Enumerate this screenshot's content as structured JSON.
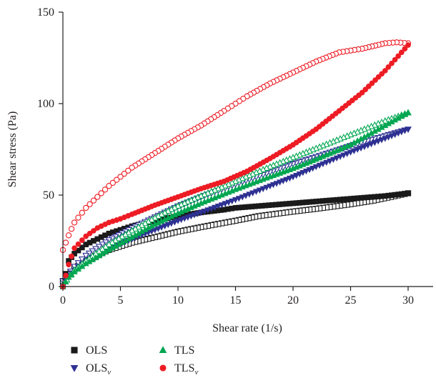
{
  "chart_data": {
    "type": "scatter",
    "title": "",
    "xlabel": "Shear rate (1/s)",
    "ylabel": "Shear stress (Pa)",
    "xlim": [
      0,
      32
    ],
    "ylim": [
      0,
      150
    ],
    "x_ticks": [
      "0",
      "5",
      "10",
      "15",
      "20",
      "25",
      "30"
    ],
    "y_ticks": [
      "0",
      "50",
      "100",
      "150"
    ],
    "grid": false,
    "legend_position": "bottom-left",
    "series": [
      {
        "key": "OLS",
        "name": "OLS",
        "subscript": "",
        "marker": "square",
        "color": "#1a1a1a",
        "up_x": [
          0,
          0.5,
          1,
          2,
          3,
          4,
          5,
          6,
          8,
          10,
          12,
          14,
          15,
          17,
          20,
          22,
          25,
          28,
          30
        ],
        "up_y": [
          0,
          14,
          18,
          23,
          26,
          29,
          31,
          33,
          36,
          38.5,
          40.5,
          42,
          43,
          44,
          45.5,
          46.5,
          48,
          49.5,
          51
        ],
        "down_x": [
          30,
          27,
          25,
          22,
          20,
          17,
          15,
          12,
          10,
          8,
          6,
          4,
          2,
          1,
          0
        ],
        "down_y": [
          51,
          47,
          45,
          42.5,
          41,
          38.5,
          36,
          32.5,
          30,
          27,
          24,
          20,
          14,
          10,
          3
        ]
      },
      {
        "key": "OLSv",
        "name": "OLS",
        "subscript": "v",
        "marker": "triangle-down",
        "color": "#2e3192",
        "up_x": [
          0,
          0.5,
          1,
          2,
          4,
          6,
          8,
          10,
          12,
          15,
          18,
          20,
          22,
          25,
          28,
          30
        ],
        "up_y": [
          0,
          6,
          9,
          14,
          21,
          26,
          31,
          36,
          40.5,
          47.5,
          55,
          60,
          65.5,
          73.5,
          81,
          86
        ],
        "down_x": [
          30,
          28,
          25,
          22,
          20,
          18,
          15,
          12,
          10,
          8,
          6,
          4,
          2,
          1,
          0
        ],
        "down_y": [
          86,
          82.5,
          77,
          71,
          67,
          62.5,
          56,
          49,
          44,
          38,
          32,
          25.5,
          17,
          11,
          3
        ]
      },
      {
        "key": "TLS",
        "name": "TLS",
        "subscript": "",
        "marker": "triangle-up",
        "color": "#00a651",
        "up_x": [
          0,
          0.5,
          1,
          2,
          4,
          6,
          8,
          10,
          12,
          15,
          18,
          20,
          22,
          25,
          28,
          30
        ],
        "up_y": [
          0,
          5,
          8,
          12.5,
          20,
          27,
          34,
          40,
          45.5,
          53,
          60,
          64.5,
          69.5,
          77.5,
          88,
          95
        ],
        "down_x": [
          30,
          28,
          25,
          22,
          20,
          18,
          15,
          12,
          10,
          8,
          6,
          4,
          2,
          1,
          0
        ],
        "down_y": [
          95,
          90.5,
          83,
          75.5,
          70.5,
          65.5,
          57.5,
          49.5,
          44,
          37.5,
          30.5,
          23,
          14,
          9,
          1
        ]
      },
      {
        "key": "TLSv",
        "name": "TLS",
        "subscript": "v",
        "marker": "circle",
        "color": "#ed1c24",
        "up_x": [
          0,
          0.5,
          1,
          2,
          3,
          4,
          5,
          6,
          8,
          10,
          12,
          14,
          16,
          18,
          20,
          22,
          24,
          26,
          28,
          30
        ],
        "up_y": [
          0,
          12,
          21,
          27.5,
          32,
          35,
          37,
          39.5,
          44.5,
          49,
          53.5,
          57.5,
          63,
          70,
          77.5,
          86,
          96,
          106,
          118,
          132
        ],
        "down_x": [
          30,
          29,
          28,
          26,
          25,
          24,
          22,
          20,
          18,
          16,
          15,
          14,
          12,
          10,
          8,
          6,
          5,
          4,
          3,
          2,
          1,
          0.5,
          0
        ],
        "down_y": [
          133,
          133.5,
          133,
          130,
          129,
          128,
          123,
          117,
          111,
          104,
          100,
          96,
          88,
          81,
          73,
          65,
          60,
          55,
          49,
          43,
          35,
          28,
          20
        ]
      }
    ]
  }
}
